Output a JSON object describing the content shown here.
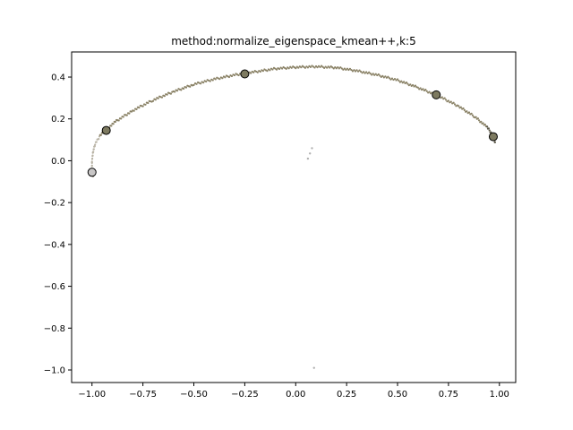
{
  "chart_data": {
    "type": "scatter",
    "title": "method:normalize_eigenspace_kmean++,k:5",
    "xlabel": "",
    "ylabel": "",
    "xlim": [
      -1.1,
      1.08
    ],
    "ylim": [
      -1.06,
      0.52
    ],
    "xticks": [
      -1.0,
      -0.75,
      -0.5,
      -0.25,
      0.0,
      0.25,
      0.5,
      0.75,
      1.0
    ],
    "xtick_labels": [
      "−1.00",
      "−0.75",
      "−0.50",
      "−0.25",
      "0.00",
      "0.25",
      "0.50",
      "0.75",
      "1.00"
    ],
    "yticks": [
      0.4,
      0.2,
      0.0,
      -0.2,
      -0.4,
      -0.6,
      -0.8,
      -1.0
    ],
    "ytick_labels": [
      "0.4",
      "0.2",
      "0.0",
      "−0.2",
      "−0.4",
      "−0.6",
      "−0.8",
      "−1.0"
    ],
    "grid": false,
    "colors": {
      "curve_main": "#8a8266",
      "curve_light": "#b9b4a6",
      "curve_dark": "#5c5848",
      "outlier": "#b0b0b0",
      "centroid_dark": "#7d7a60",
      "centroid_light": "#c8c6c6",
      "centroid_edge": "#000000"
    },
    "series": [
      {
        "role": "points-curve",
        "points": [
          [
            -0.995,
            -0.08
          ],
          [
            -1.0,
            -0.04
          ],
          [
            -1.0,
            0.0
          ],
          [
            -0.995,
            0.04
          ],
          [
            -0.985,
            0.08
          ],
          [
            -0.96,
            0.12
          ],
          [
            -0.93,
            0.15
          ],
          [
            -0.88,
            0.19
          ],
          [
            -0.8,
            0.24
          ],
          [
            -0.7,
            0.29
          ],
          [
            -0.6,
            0.33
          ],
          [
            -0.5,
            0.365
          ],
          [
            -0.4,
            0.39
          ],
          [
            -0.3,
            0.41
          ],
          [
            -0.2,
            0.425
          ],
          [
            -0.1,
            0.44
          ],
          [
            0.0,
            0.447
          ],
          [
            0.1,
            0.45
          ],
          [
            0.2,
            0.445
          ],
          [
            0.3,
            0.43
          ],
          [
            0.4,
            0.41
          ],
          [
            0.5,
            0.385
          ],
          [
            0.6,
            0.35
          ],
          [
            0.7,
            0.31
          ],
          [
            0.8,
            0.26
          ],
          [
            0.88,
            0.21
          ],
          [
            0.94,
            0.16
          ],
          [
            0.97,
            0.12
          ],
          [
            0.98,
            0.08
          ]
        ]
      },
      {
        "role": "outliers",
        "points": [
          [
            0.06,
            0.01
          ],
          [
            0.08,
            0.06
          ],
          [
            0.07,
            0.035
          ],
          [
            0.09,
            -0.99
          ]
        ]
      },
      {
        "role": "centroids",
        "points": [
          {
            "x": -1.0,
            "y": -0.055,
            "shade": "light"
          },
          {
            "x": -0.93,
            "y": 0.145,
            "shade": "dark"
          },
          {
            "x": -0.25,
            "y": 0.415,
            "shade": "dark"
          },
          {
            "x": 0.69,
            "y": 0.315,
            "shade": "dark"
          },
          {
            "x": 0.97,
            "y": 0.115,
            "shade": "dark"
          }
        ]
      }
    ]
  }
}
